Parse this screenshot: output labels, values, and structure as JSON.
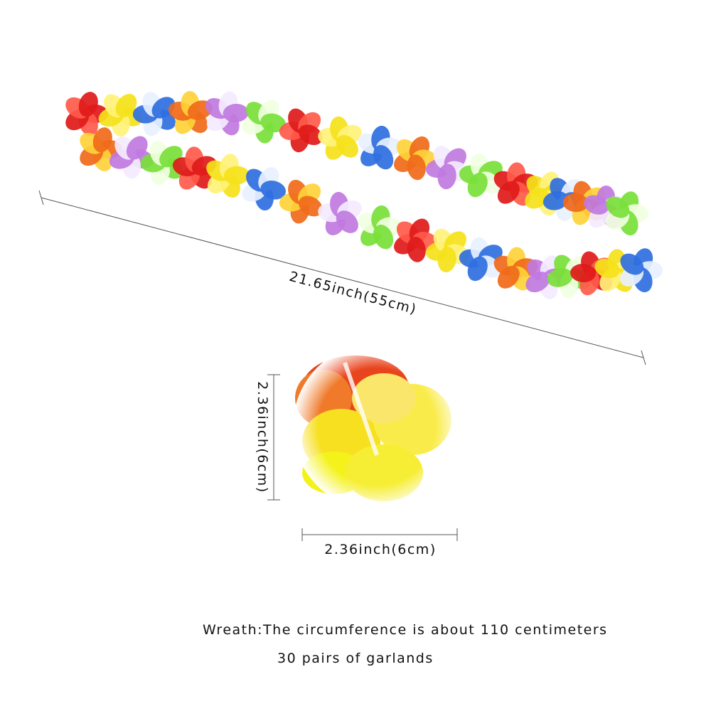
{
  "dimensions": {
    "length_label": "21.65inch(55cm)",
    "flower_height_label": "2.36inch(6cm)",
    "flower_width_label": "2.36inch(6cm)"
  },
  "caption": {
    "line1": "Wreath:The circumference is about 110 centimeters",
    "line2": "30 pairs of garlands"
  }
}
